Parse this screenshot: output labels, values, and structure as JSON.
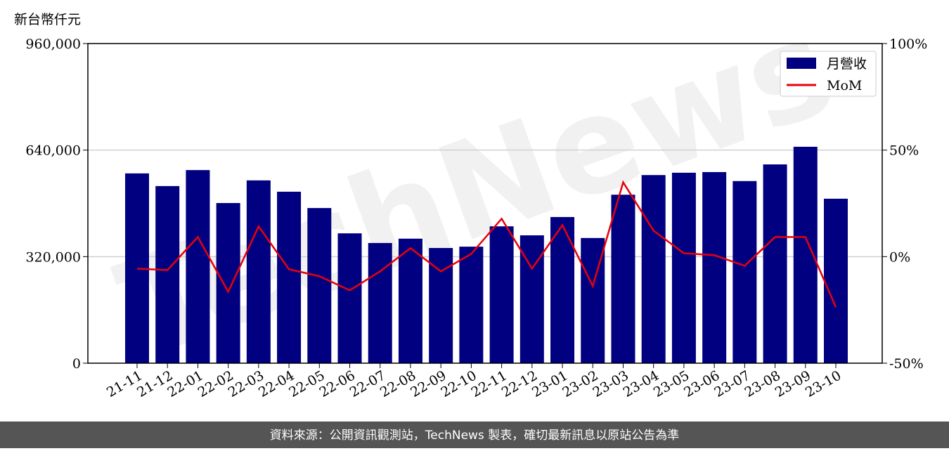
{
  "chart_data": {
    "type": "bar",
    "y_label": "新台幣仟元",
    "watermark": "TechNews",
    "source": "資料來源：公開資訊觀測站，TechNews 製表，確切最新訊息以原站公告為準",
    "categories": [
      "21-11",
      "21-12",
      "22-01",
      "22-02",
      "22-03",
      "22-04",
      "22-05",
      "22-06",
      "22-07",
      "22-08",
      "22-09",
      "22-10",
      "22-11",
      "22-12",
      "23-01",
      "23-02",
      "23-03",
      "23-04",
      "23-05",
      "23-06",
      "23-07",
      "23-08",
      "23-09",
      "23-10"
    ],
    "series": [
      {
        "name": "月營收",
        "type": "bar",
        "color": "#000080",
        "values": [
          570000,
          532000,
          580000,
          481000,
          549000,
          515000,
          466000,
          390000,
          361000,
          374000,
          346000,
          350000,
          411000,
          384000,
          439000,
          376000,
          506000,
          565000,
          572000,
          574000,
          547000,
          597000,
          650000,
          494000
        ]
      },
      {
        "name": "MoM",
        "type": "line",
        "axis": "y2",
        "color": "#e8000b",
        "values": [
          -5.6,
          -6.3,
          9.2,
          -16.5,
          14.2,
          -5.9,
          -9.2,
          -15.8,
          -6.9,
          4.0,
          -6.9,
          1.3,
          17.8,
          -5.6,
          14.8,
          -13.8,
          34.9,
          12.2,
          1.6,
          0.7,
          -4.3,
          9.2,
          9.2,
          -23.7
        ]
      }
    ],
    "ylim": [
      0,
      960000
    ],
    "yticks": [
      {
        "value": 0,
        "label": "0"
      },
      {
        "value": 320000,
        "label": "320,000"
      },
      {
        "value": 640000,
        "label": "640,000"
      },
      {
        "value": 960000,
        "label": "960,000"
      }
    ],
    "y2lim": [
      -50,
      100
    ],
    "y2ticks": [
      {
        "value": -50,
        "label": "-50%"
      },
      {
        "value": 0,
        "label": "0%"
      },
      {
        "value": 50,
        "label": "50%"
      },
      {
        "value": 100,
        "label": "100%"
      }
    ],
    "grid": true,
    "legend": "upper right"
  }
}
